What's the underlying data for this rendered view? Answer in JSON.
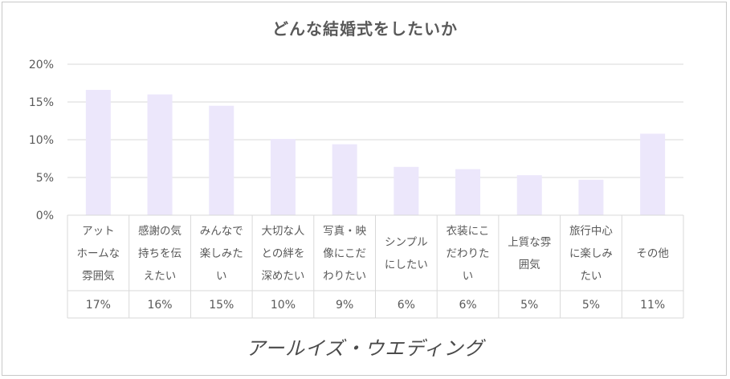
{
  "chart_data": {
    "type": "table",
    "title": "どんな結婚式をしたいか",
    "chart_type": "bar",
    "categories": [
      [
        "アット",
        "ホームな",
        "雰囲気"
      ],
      [
        "感謝の気",
        "持ちを伝",
        "えたい"
      ],
      [
        "みんなで",
        "楽しみた",
        "い"
      ],
      [
        "大切な人",
        "との絆を",
        "深めたい"
      ],
      [
        "写真・映",
        "像にこだ",
        "わりたい"
      ],
      [
        "シンプル",
        "にしたい"
      ],
      [
        "衣装にこ",
        "だわりた",
        "い"
      ],
      [
        "上質な雰",
        "囲気"
      ],
      [
        "旅行中心",
        "に楽しみ",
        "たい"
      ],
      [
        "その他"
      ]
    ],
    "values": [
      16.6,
      16.0,
      14.5,
      10.1,
      9.4,
      6.4,
      6.1,
      5.3,
      4.7,
      10.8
    ],
    "value_labels": [
      "17%",
      "16%",
      "15%",
      "10%",
      "9%",
      "6%",
      "6%",
      "5%",
      "5%",
      "11%"
    ],
    "yticks": [
      "0%",
      "5%",
      "10%",
      "15%",
      "20%"
    ],
    "ylim": [
      0,
      20
    ],
    "grid": true,
    "bar_color": "#ece7fb",
    "grid_color": "#d9d9d9",
    "text_color": "#595959"
  },
  "brand": {
    "logo_text": "アールイズ・ウエディング"
  }
}
